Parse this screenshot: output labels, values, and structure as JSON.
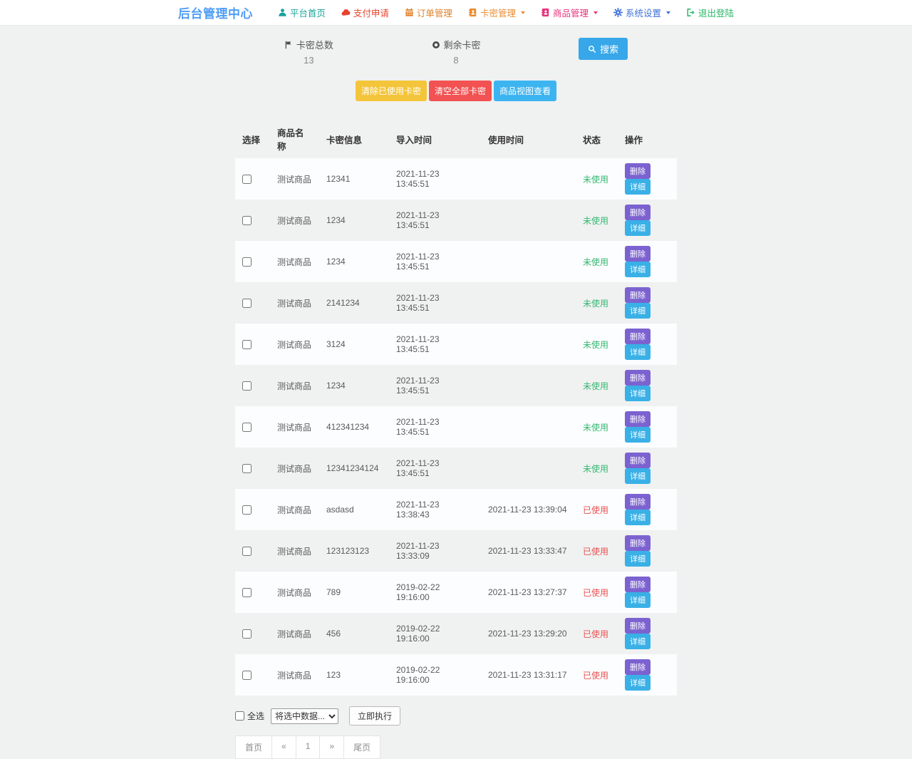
{
  "header": {
    "title": "后台管理中心",
    "nav": [
      {
        "name": "home",
        "label": "平台首页",
        "icon": "user-icon",
        "color": "#18a39b",
        "dropdown": false
      },
      {
        "name": "payment",
        "label": "支付申请",
        "icon": "cloud-icon",
        "color": "#e8432e",
        "dropdown": false
      },
      {
        "name": "orders",
        "label": "订单管理",
        "icon": "calendar-icon",
        "color": "#e0812a",
        "dropdown": false
      },
      {
        "name": "cards",
        "label": "卡密管理",
        "icon": "address-book-icon",
        "color": "#ea8c2f",
        "dropdown": true
      },
      {
        "name": "products",
        "label": "商品管理",
        "icon": "address-book-icon",
        "color": "#e8327c",
        "dropdown": true
      },
      {
        "name": "settings",
        "label": "系统设置",
        "icon": "gear-icon",
        "color": "#3f72d9",
        "dropdown": true
      },
      {
        "name": "logout",
        "label": "退出登陆",
        "icon": "logout-icon",
        "color": "#29b765",
        "dropdown": false
      }
    ]
  },
  "stats": [
    {
      "label": "卡密总数",
      "value": "13",
      "icon": "flag-icon"
    },
    {
      "label": "剩余卡密",
      "value": "8",
      "icon": "dot-circle-icon"
    }
  ],
  "search_button_label": "搜索",
  "toolbar": [
    {
      "name": "clear-used-cards",
      "label": "清除已使用卡密",
      "color": "#f4c53a"
    },
    {
      "name": "clear-all-cards",
      "label": "清空全部卡密",
      "color": "#f25252"
    },
    {
      "name": "product-view",
      "label": "商品视图查看",
      "color": "#3cb4f0"
    }
  ],
  "table": {
    "headers": [
      "选择",
      "商品名称",
      "卡密信息",
      "导入时间",
      "使用时间",
      "状态",
      "操作"
    ],
    "actions": {
      "delete_label": "删除",
      "detail_label": "详细"
    },
    "status_colors": {
      "unused": "#35b871",
      "used": "#ec5050"
    },
    "rows": [
      {
        "product": "测试商品",
        "code": "12341",
        "import_time": "2021-11-23 13:45:51",
        "use_time": "",
        "status": "未使用",
        "used": false
      },
      {
        "product": "测试商品",
        "code": "1234",
        "import_time": "2021-11-23 13:45:51",
        "use_time": "",
        "status": "未使用",
        "used": false
      },
      {
        "product": "测试商品",
        "code": "1234",
        "import_time": "2021-11-23 13:45:51",
        "use_time": "",
        "status": "未使用",
        "used": false
      },
      {
        "product": "测试商品",
        "code": "2141234",
        "import_time": "2021-11-23 13:45:51",
        "use_time": "",
        "status": "未使用",
        "used": false
      },
      {
        "product": "测试商品",
        "code": "3124",
        "import_time": "2021-11-23 13:45:51",
        "use_time": "",
        "status": "未使用",
        "used": false
      },
      {
        "product": "测试商品",
        "code": "1234",
        "import_time": "2021-11-23 13:45:51",
        "use_time": "",
        "status": "未使用",
        "used": false
      },
      {
        "product": "测试商品",
        "code": "412341234",
        "import_time": "2021-11-23 13:45:51",
        "use_time": "",
        "status": "未使用",
        "used": false
      },
      {
        "product": "测试商品",
        "code": "12341234124",
        "import_time": "2021-11-23 13:45:51",
        "use_time": "",
        "status": "未使用",
        "used": false
      },
      {
        "product": "测试商品",
        "code": "asdasd",
        "import_time": "2021-11-23 13:38:43",
        "use_time": "2021-11-23 13:39:04",
        "status": "已使用",
        "used": true
      },
      {
        "product": "测试商品",
        "code": "123123123",
        "import_time": "2021-11-23 13:33:09",
        "use_time": "2021-11-23 13:33:47",
        "status": "已使用",
        "used": true
      },
      {
        "product": "测试商品",
        "code": "789",
        "import_time": "2019-02-22 19:16:00",
        "use_time": "2021-11-23 13:27:37",
        "status": "已使用",
        "used": true
      },
      {
        "product": "测试商品",
        "code": "456",
        "import_time": "2019-02-22 19:16:00",
        "use_time": "2021-11-23 13:29:20",
        "status": "已使用",
        "used": true
      },
      {
        "product": "测试商品",
        "code": "123",
        "import_time": "2019-02-22 19:16:00",
        "use_time": "2021-11-23 13:31:17",
        "status": "已使用",
        "used": true
      }
    ]
  },
  "bulk": {
    "select_all_label": "全选",
    "action_option": "将选中数据...",
    "execute_label": "立即执行"
  },
  "pagination": [
    {
      "name": "first",
      "label": "首页"
    },
    {
      "name": "prev",
      "label": "«"
    },
    {
      "name": "page-1",
      "label": "1"
    },
    {
      "name": "next",
      "label": "»"
    },
    {
      "name": "last",
      "label": "尾页"
    }
  ]
}
